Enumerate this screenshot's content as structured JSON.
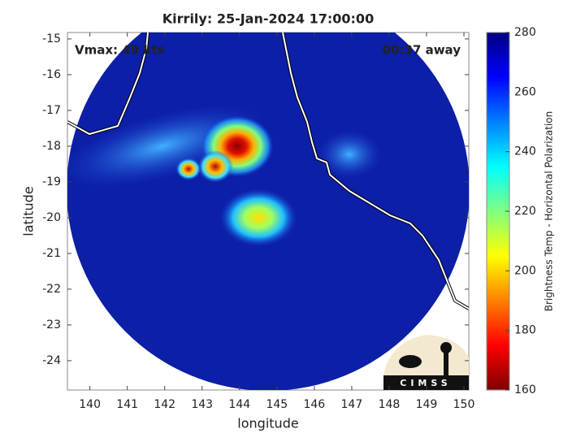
{
  "chart_data": {
    "type": "map",
    "title": "Kirrily: 25-Jan-2024 17:00:00",
    "annotations": [
      "Vmax: 49 kts",
      "00:37 away"
    ],
    "xlabel": "longitude",
    "ylabel": "latitude",
    "xlim": [
      139.4,
      150.13
    ],
    "xticks": [
      140,
      141,
      142,
      143,
      144,
      145,
      146,
      147,
      148,
      149,
      150
    ],
    "ylim": [
      -24.82,
      -14.82
    ],
    "yticks": [
      -15,
      -16,
      -17,
      -18,
      -19,
      -20,
      -21,
      -22,
      -23,
      -24
    ],
    "colorbar": {
      "label": "Brightness Temp - Horizontal Polarization",
      "colormap": "jet",
      "lim": [
        160,
        280
      ],
      "ticks": [
        160,
        180,
        200,
        220,
        240,
        260,
        280
      ]
    },
    "logo": "CIMSS"
  }
}
